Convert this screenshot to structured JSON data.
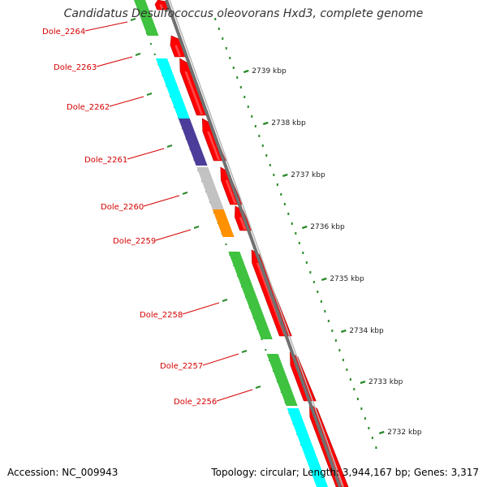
{
  "title": "Candidatus Desulfococcus oleovorans Hxd3, complete genome",
  "footer": {
    "accession": "Accession: NC_009943",
    "stats": "Topology: circular; Length: 3,944,167 bp; Genes: 3,317"
  },
  "colors": {
    "label": "#d40000",
    "tick": "#2a8a2a",
    "backbone": "#808080",
    "cds": "#ff0000"
  },
  "scale_ticks": [
    "2739 kbp",
    "2738 kbp",
    "2737 kbp",
    "2736 kbp",
    "2735 kbp",
    "2734 kbp",
    "2733 kbp",
    "2732 kbp"
  ],
  "gene_labels": [
    "Dole_2264",
    "Dole_2263",
    "Dole_2262",
    "Dole_2261",
    "Dole_2260",
    "Dole_2259",
    "Dole_2258",
    "Dole_2257",
    "Dole_2256"
  ],
  "cog_blocks": [
    {
      "color": "#3fc23f",
      "gene": "Dole_2264"
    },
    {
      "color": "#00ffff",
      "gene": "Dole_2262"
    },
    {
      "color": "#4b3d99",
      "gene": "Dole_2261"
    },
    {
      "color": "#c2c2c2",
      "gene": "Dole_2260"
    },
    {
      "color": "#ff9000",
      "gene": "Dole_2259"
    },
    {
      "color": "#3fc23f",
      "gene": "Dole_2258"
    },
    {
      "color": "#3fc23f",
      "gene": "Dole_2257"
    },
    {
      "color": "#00ffff",
      "gene": "Dole_2256"
    }
  ]
}
